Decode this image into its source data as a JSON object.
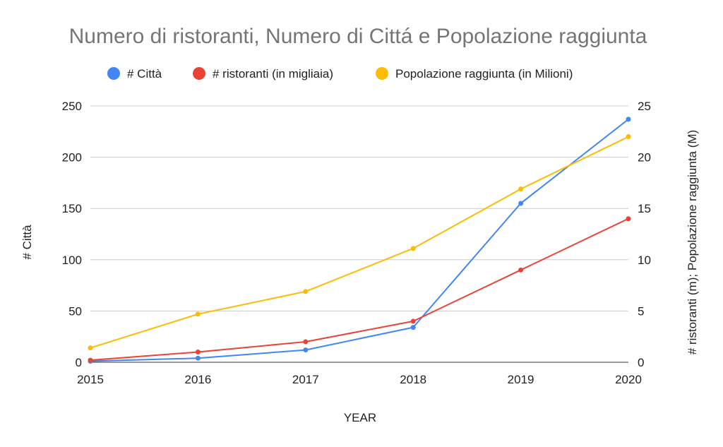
{
  "chart_data": {
    "type": "line",
    "title": "Numero di ristoranti, Numero di Cittá e Popolazione raggiunta",
    "xlabel": "YEAR",
    "ylabel_left": "# Città",
    "ylabel_right": "# ristoranti (m); Popolazione raggiunta (M)",
    "x": [
      "2015",
      "2016",
      "2017",
      "2018",
      "2019",
      "2020"
    ],
    "ylim_left": [
      0,
      250
    ],
    "yticks_left": [
      0,
      50,
      100,
      150,
      200,
      250
    ],
    "ylim_right": [
      0,
      25
    ],
    "yticks_right": [
      0,
      5,
      10,
      15,
      20,
      25
    ],
    "grid": true,
    "legend_position": "top",
    "series": [
      {
        "name": "# Città",
        "color": "#4285F4",
        "axis": "left",
        "values": [
          1,
          4,
          12,
          34,
          155,
          237
        ]
      },
      {
        "name": "# ristoranti (in migliaia)",
        "color": "#EA4335",
        "axis": "right",
        "values": [
          0.2,
          1,
          2,
          4,
          9,
          14
        ]
      },
      {
        "name": "Popolazione raggiunta (in Milioni)",
        "color": "#FBBC04",
        "axis": "right",
        "values": [
          1.4,
          4.7,
          6.9,
          11.1,
          16.9,
          22
        ]
      }
    ]
  }
}
